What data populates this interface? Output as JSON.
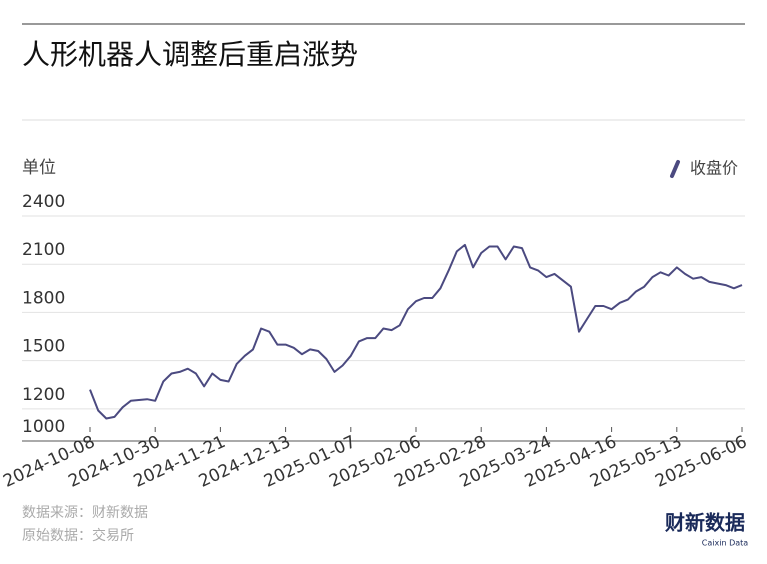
{
  "chart_data": {
    "type": "line",
    "title": "人形机器人调整后重启涨势",
    "unit_label": "单位",
    "x": [
      "2024-10-08",
      null,
      null,
      null,
      null,
      null,
      null,
      null,
      "2024-10-30",
      null,
      null,
      null,
      null,
      null,
      null,
      null,
      "2024-11-21",
      null,
      null,
      null,
      null,
      null,
      null,
      null,
      "2024-12-13",
      null,
      null,
      null,
      null,
      null,
      null,
      null,
      "2025-01-07",
      null,
      null,
      null,
      null,
      null,
      null,
      null,
      "2025-02-06",
      null,
      null,
      null,
      null,
      null,
      null,
      null,
      "2025-02-28",
      null,
      null,
      null,
      null,
      null,
      null,
      null,
      "2025-03-24",
      null,
      null,
      null,
      null,
      null,
      null,
      null,
      "2025-04-16",
      null,
      null,
      null,
      null,
      null,
      null,
      null,
      "2025-05-13",
      null,
      null,
      null,
      null,
      null,
      null,
      null,
      "2025-06-06"
    ],
    "series": [
      {
        "name": "收盘价",
        "color": "#4b4a80",
        "values": [
          1320,
          1190,
          1140,
          1150,
          1210,
          1250,
          1255,
          1260,
          1250,
          1370,
          1420,
          1430,
          1450,
          1420,
          1340,
          1420,
          1380,
          1370,
          1480,
          1530,
          1570,
          1700,
          1680,
          1600,
          1600,
          1580,
          1540,
          1570,
          1560,
          1510,
          1430,
          1470,
          1530,
          1620,
          1640,
          1640,
          1700,
          1690,
          1720,
          1820,
          1870,
          1890,
          1890,
          1950,
          2060,
          2180,
          2220,
          2080,
          2170,
          2210,
          2210,
          2130,
          2210,
          2200,
          2080,
          2060,
          2020,
          2040,
          2000,
          1960,
          1680,
          1760,
          1840,
          1840,
          1820,
          1860,
          1880,
          1930,
          1960,
          2020,
          2050,
          2030,
          2080,
          2040,
          2010,
          2020,
          1990,
          1980,
          1970,
          1950,
          1970
        ]
      }
    ],
    "ylim": [
      1000,
      2400
    ],
    "yticks": [
      1000,
      1200,
      1500,
      1800,
      2100,
      2400
    ],
    "grid": true,
    "source": "数据来源：财新数据",
    "original_source": "原始数据：交易所",
    "logo": "财新数据",
    "logo_sub": "Caixin Data"
  }
}
